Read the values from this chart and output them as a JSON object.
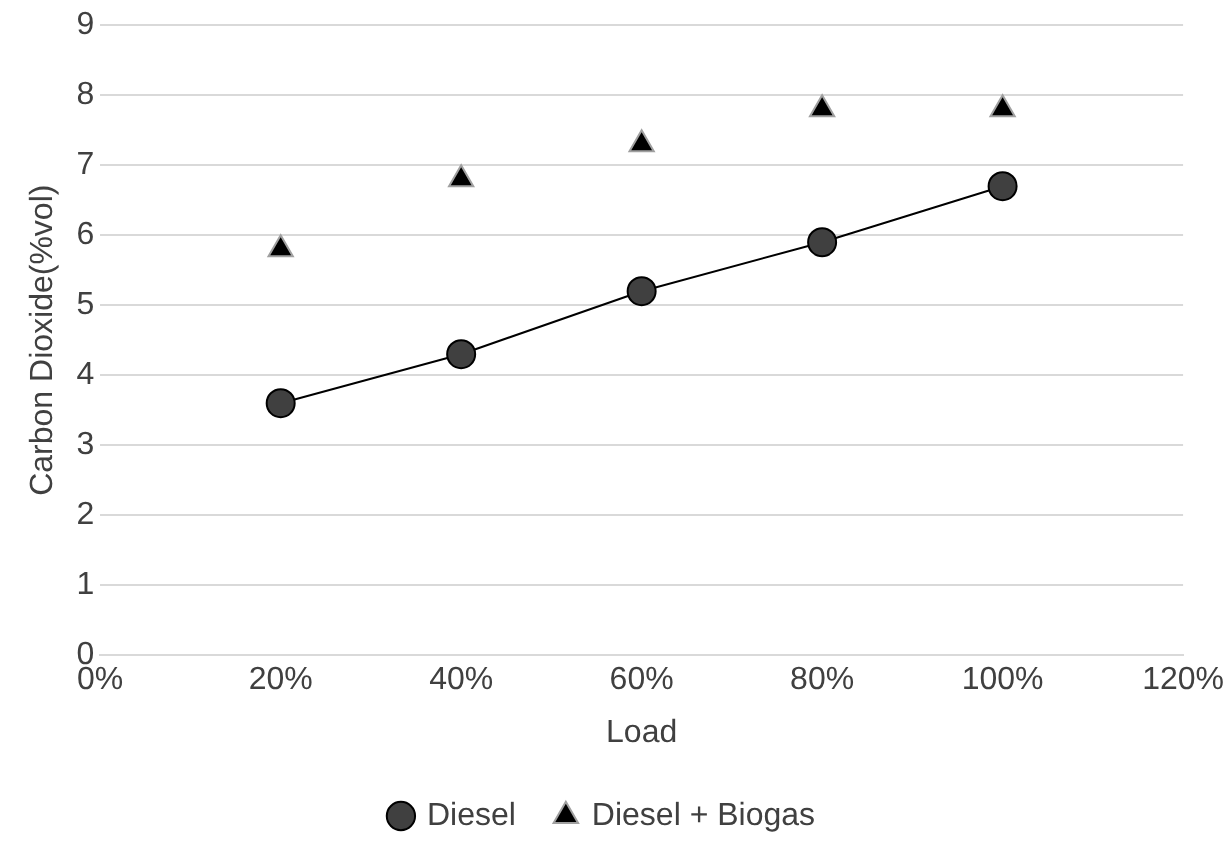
{
  "chart_data": {
    "type": "line",
    "xlabel": "Load",
    "ylabel": "Carbon Dioxide(%vol)",
    "x": [
      20,
      40,
      60,
      80,
      100
    ],
    "series": [
      {
        "name": "Diesel",
        "color": "#404040",
        "marker": "circle",
        "values": [
          3.6,
          4.3,
          5.2,
          5.9,
          6.7
        ]
      },
      {
        "name": "Diesel + Biogas",
        "type": "scatter",
        "color": "#000000",
        "marker": "triangle",
        "values": [
          5.8,
          6.8,
          7.3,
          7.8,
          7.8
        ]
      }
    ],
    "xlim": [
      0,
      120
    ],
    "xticks": [
      {
        "value": 0,
        "label": "0%"
      },
      {
        "value": 20,
        "label": "20%"
      },
      {
        "value": 40,
        "label": "40%"
      },
      {
        "value": 60,
        "label": "60%"
      },
      {
        "value": 80,
        "label": "80%"
      },
      {
        "value": 100,
        "label": "100%"
      },
      {
        "value": 120,
        "label": "120%"
      }
    ],
    "ylim": [
      0,
      9
    ],
    "yticks": [
      0,
      1,
      2,
      3,
      4,
      5,
      6,
      7,
      8,
      9
    ],
    "grid": "y",
    "legend": "bottom"
  }
}
